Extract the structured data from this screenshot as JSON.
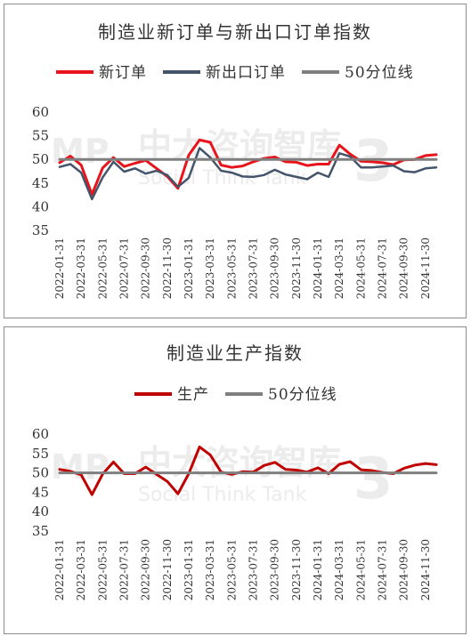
{
  "watermark": {
    "brand": "中大咨询智库",
    "sub": "Social Think Tank",
    "logo": "MP",
    "mark": "3"
  },
  "chart_data": [
    {
      "type": "line",
      "title": "制造业新订单与新出口订单指数",
      "ylim": [
        35,
        60
      ],
      "yticks": [
        35,
        40,
        45,
        50,
        55,
        60
      ],
      "grid": false,
      "legend": "top",
      "x": [
        "2022-01-31",
        "2022-02-28",
        "2022-03-31",
        "2022-04-30",
        "2022-05-31",
        "2022-06-30",
        "2022-07-31",
        "2022-08-31",
        "2022-09-30",
        "2022-10-31",
        "2022-11-30",
        "2022-12-31",
        "2023-01-31",
        "2023-02-28",
        "2023-03-31",
        "2023-04-30",
        "2023-05-31",
        "2023-06-30",
        "2023-07-31",
        "2023-08-31",
        "2023-09-30",
        "2023-10-31",
        "2023-11-30",
        "2023-12-31",
        "2024-01-31",
        "2024-02-29",
        "2024-03-31",
        "2024-04-30",
        "2024-05-31",
        "2024-06-30",
        "2024-07-31",
        "2024-08-31",
        "2024-09-30",
        "2024-10-31",
        "2024-11-30",
        "2024-12-31"
      ],
      "xtick_labels": [
        "2022-01-31",
        "2022-03-31",
        "2022-05-31",
        "2022-07-31",
        "2022-09-30",
        "2022-11-30",
        "2023-01-31",
        "2023-03-31",
        "2023-05-31",
        "2023-07-31",
        "2023-09-30",
        "2023-11-30",
        "2024-01-31",
        "2024-03-31",
        "2024-05-31",
        "2024-07-31",
        "2024-09-30",
        "2024-11-30"
      ],
      "series": [
        {
          "name": "新订单",
          "color": "#e8141c",
          "width": 3,
          "values": [
            49.3,
            50.7,
            48.8,
            42.6,
            48.2,
            50.4,
            48.5,
            49.2,
            49.8,
            48.1,
            46.4,
            43.9,
            50.9,
            54.1,
            53.6,
            48.8,
            48.3,
            48.6,
            49.5,
            50.2,
            50.5,
            49.5,
            49.4,
            48.7,
            49.0,
            49.0,
            53.0,
            51.1,
            49.6,
            49.5,
            49.3,
            48.9,
            49.9,
            50.0,
            50.8,
            51.0
          ]
        },
        {
          "name": "新出口订单",
          "color": "#44546a",
          "width": 2.5,
          "values": [
            48.4,
            49.0,
            47.2,
            41.6,
            46.2,
            49.5,
            47.4,
            48.1,
            47.0,
            47.6,
            46.7,
            44.2,
            46.1,
            52.4,
            50.4,
            47.6,
            47.2,
            46.4,
            46.3,
            46.7,
            47.8,
            46.8,
            46.3,
            45.8,
            47.2,
            46.3,
            51.3,
            50.6,
            48.3,
            48.3,
            48.5,
            48.7,
            47.5,
            47.3,
            48.1,
            48.3
          ]
        },
        {
          "name": "50分位线",
          "color": "#7f7f7f",
          "width": 3,
          "values": [
            50,
            50,
            50,
            50,
            50,
            50,
            50,
            50,
            50,
            50,
            50,
            50,
            50,
            50,
            50,
            50,
            50,
            50,
            50,
            50,
            50,
            50,
            50,
            50,
            50,
            50,
            50,
            50,
            50,
            50,
            50,
            50,
            50,
            50,
            50,
            50
          ]
        }
      ]
    },
    {
      "type": "line",
      "title": "制造业生产指数",
      "ylim": [
        35,
        60
      ],
      "yticks": [
        35,
        40,
        45,
        50,
        55,
        60
      ],
      "grid": false,
      "legend": "top",
      "x": [
        "2022-01-31",
        "2022-02-28",
        "2022-03-31",
        "2022-04-30",
        "2022-05-31",
        "2022-06-30",
        "2022-07-31",
        "2022-08-31",
        "2022-09-30",
        "2022-10-31",
        "2022-11-30",
        "2022-12-31",
        "2023-01-31",
        "2023-02-28",
        "2023-03-31",
        "2023-04-30",
        "2023-05-31",
        "2023-06-30",
        "2023-07-31",
        "2023-08-31",
        "2023-09-30",
        "2023-10-31",
        "2023-11-30",
        "2023-12-31",
        "2024-01-31",
        "2024-02-29",
        "2024-03-31",
        "2024-04-30",
        "2024-05-31",
        "2024-06-30",
        "2024-07-31",
        "2024-08-31",
        "2024-09-30",
        "2024-10-31",
        "2024-11-30",
        "2024-12-31"
      ],
      "xtick_labels": [
        "2022-01-31",
        "2022-03-31",
        "2022-05-31",
        "2022-07-31",
        "2022-09-30",
        "2022-11-30",
        "2023-01-31",
        "2023-03-31",
        "2023-05-31",
        "2023-07-31",
        "2023-09-30",
        "2023-11-30",
        "2024-01-31",
        "2024-03-31",
        "2024-05-31",
        "2024-07-31",
        "2024-09-30",
        "2024-11-30"
      ],
      "series": [
        {
          "name": "生产",
          "color": "#c00000",
          "width": 3,
          "values": [
            50.9,
            50.4,
            49.5,
            44.4,
            49.7,
            52.8,
            49.8,
            49.8,
            51.5,
            49.6,
            47.8,
            44.6,
            49.8,
            56.7,
            54.6,
            50.2,
            49.6,
            50.3,
            50.2,
            51.9,
            52.7,
            50.9,
            50.7,
            50.2,
            51.3,
            49.8,
            52.2,
            52.9,
            50.8,
            50.6,
            50.1,
            49.8,
            51.2,
            52.0,
            52.4,
            52.1
          ]
        },
        {
          "name": "50分位线",
          "color": "#7f7f7f",
          "width": 3,
          "values": [
            50,
            50,
            50,
            50,
            50,
            50,
            50,
            50,
            50,
            50,
            50,
            50,
            50,
            50,
            50,
            50,
            50,
            50,
            50,
            50,
            50,
            50,
            50,
            50,
            50,
            50,
            50,
            50,
            50,
            50,
            50,
            50,
            50,
            50,
            50,
            50
          ]
        }
      ]
    }
  ]
}
